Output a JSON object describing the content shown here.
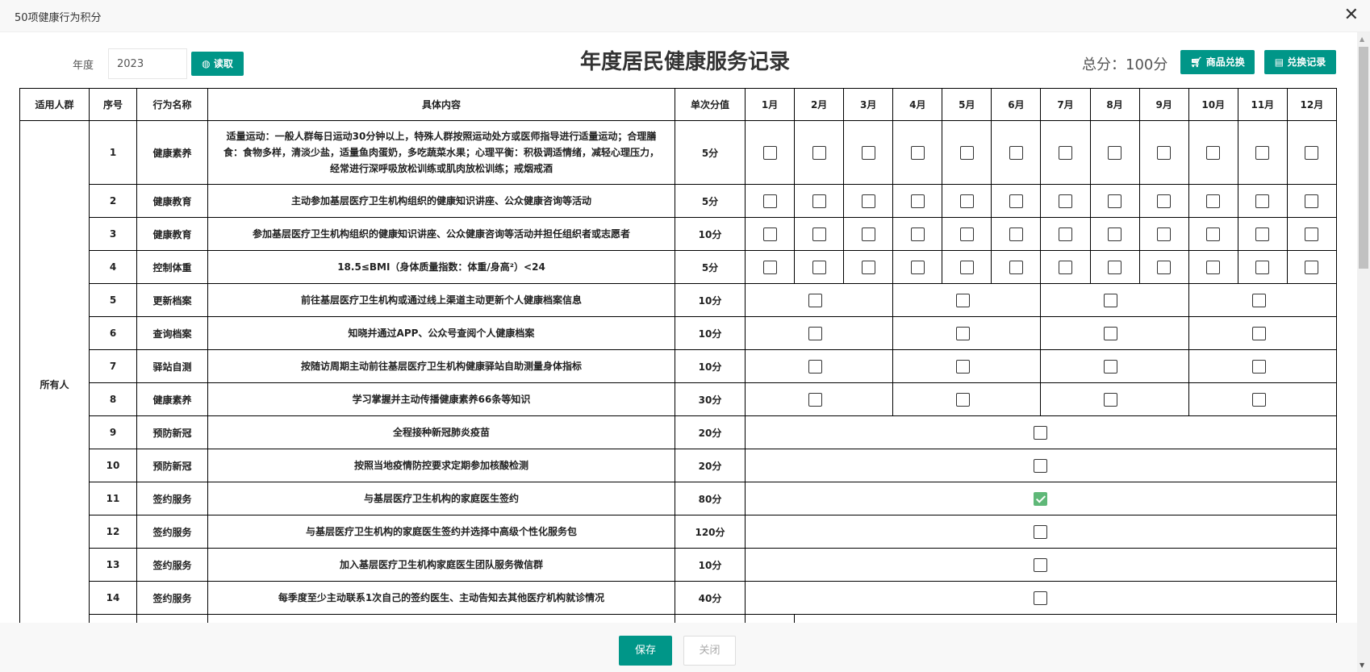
{
  "window": {
    "title": "50项健康行为积分",
    "close": "✕"
  },
  "toolbar": {
    "year_label": "年度",
    "year_value": "2023",
    "read_label": "读取",
    "page_title": "年度居民健康服务记录",
    "total": "总分：100分",
    "shop_label": "商品兑换",
    "record_label": "兑换记录"
  },
  "table": {
    "headers": [
      "适用人群",
      "序号",
      "行为名称",
      "具体内容",
      "单次分值",
      "1月",
      "2月",
      "3月",
      "4月",
      "5月",
      "6月",
      "7月",
      "8月",
      "9月",
      "10月",
      "11月",
      "12月"
    ],
    "group": "所有人",
    "rows": [
      {
        "no": "1",
        "name": "健康素养",
        "content": "适量运动：一般人群每日运动30分钟以上，特殊人群按照运动处方或医师指导进行适量运动；合理膳食：食物多样，清淡少盐，适量鱼肉蛋奶，多吃蔬菜水果；心理平衡：积极调适情绪，减轻心理压力，经常进行深呼吸放松训练或肌肉放松训练；戒烟戒酒",
        "score": "5分",
        "period": "monthly",
        "checked": [
          false,
          false,
          false,
          false,
          false,
          false,
          false,
          false,
          false,
          false,
          false,
          false
        ]
      },
      {
        "no": "2",
        "name": "健康教育",
        "content": "主动参加基层医疗卫生机构组织的健康知识讲座、公众健康咨询等活动",
        "score": "5分",
        "period": "monthly",
        "checked": [
          false,
          false,
          false,
          false,
          false,
          false,
          false,
          false,
          false,
          false,
          false,
          false
        ]
      },
      {
        "no": "3",
        "name": "健康教育",
        "content": "参加基层医疗卫生机构组织的健康知识讲座、公众健康咨询等活动并担任组织者或志愿者",
        "score": "10分",
        "period": "monthly",
        "checked": [
          false,
          false,
          false,
          false,
          false,
          false,
          false,
          false,
          false,
          false,
          false,
          false
        ]
      },
      {
        "no": "4",
        "name": "控制体重",
        "content": "18.5≤BMI（身体质量指数：体重/身高²）<24",
        "score": "5分",
        "period": "monthly",
        "checked": [
          false,
          false,
          false,
          false,
          false,
          false,
          false,
          false,
          false,
          false,
          false,
          false
        ]
      },
      {
        "no": "5",
        "name": "更新档案",
        "content": "前往基层医疗卫生机构或通过线上渠道主动更新个人健康档案信息",
        "score": "10分",
        "period": "quarterly",
        "checked": [
          false,
          false,
          false,
          false
        ]
      },
      {
        "no": "6",
        "name": "查询档案",
        "content": "知晓并通过APP、公众号查阅个人健康档案",
        "score": "10分",
        "period": "quarterly",
        "checked": [
          false,
          false,
          false,
          false
        ]
      },
      {
        "no": "7",
        "name": "驿站自测",
        "content": "按随访周期主动前往基层医疗卫生机构健康驿站自助测量身体指标",
        "score": "10分",
        "period": "quarterly",
        "checked": [
          false,
          false,
          false,
          false
        ]
      },
      {
        "no": "8",
        "name": "健康素养",
        "content": "学习掌握并主动传播健康素养66条等知识",
        "score": "30分",
        "period": "quarterly",
        "checked": [
          false,
          false,
          false,
          false
        ]
      },
      {
        "no": "9",
        "name": "预防新冠",
        "content": "全程接种新冠肺炎疫苗",
        "score": "20分",
        "period": "yearly",
        "checked": [
          false
        ]
      },
      {
        "no": "10",
        "name": "预防新冠",
        "content": "按照当地疫情防控要求定期参加核酸检测",
        "score": "20分",
        "period": "yearly",
        "checked": [
          false
        ]
      },
      {
        "no": "11",
        "name": "签约服务",
        "content": "与基层医疗卫生机构的家庭医生签约",
        "score": "80分",
        "period": "yearly",
        "checked": [
          true
        ]
      },
      {
        "no": "12",
        "name": "签约服务",
        "content": "与基层医疗卫生机构的家庭医生签约并选择中高级个性化服务包",
        "score": "120分",
        "period": "yearly",
        "checked": [
          false
        ]
      },
      {
        "no": "13",
        "name": "签约服务",
        "content": "加入基层医疗卫生机构家庭医生团队服务微信群",
        "score": "10分",
        "period": "yearly",
        "checked": [
          false
        ]
      },
      {
        "no": "14",
        "name": "签约服务",
        "content": "每季度至少主动联系1次自己的签约医生、主动告知去其他医疗机构就诊情况",
        "score": "40分",
        "period": "yearly",
        "checked": [
          false
        ]
      }
    ]
  },
  "footer": {
    "save": "保存",
    "close": "关闭"
  },
  "colors": {
    "accent": "#009688",
    "checked": "#5fb878"
  }
}
